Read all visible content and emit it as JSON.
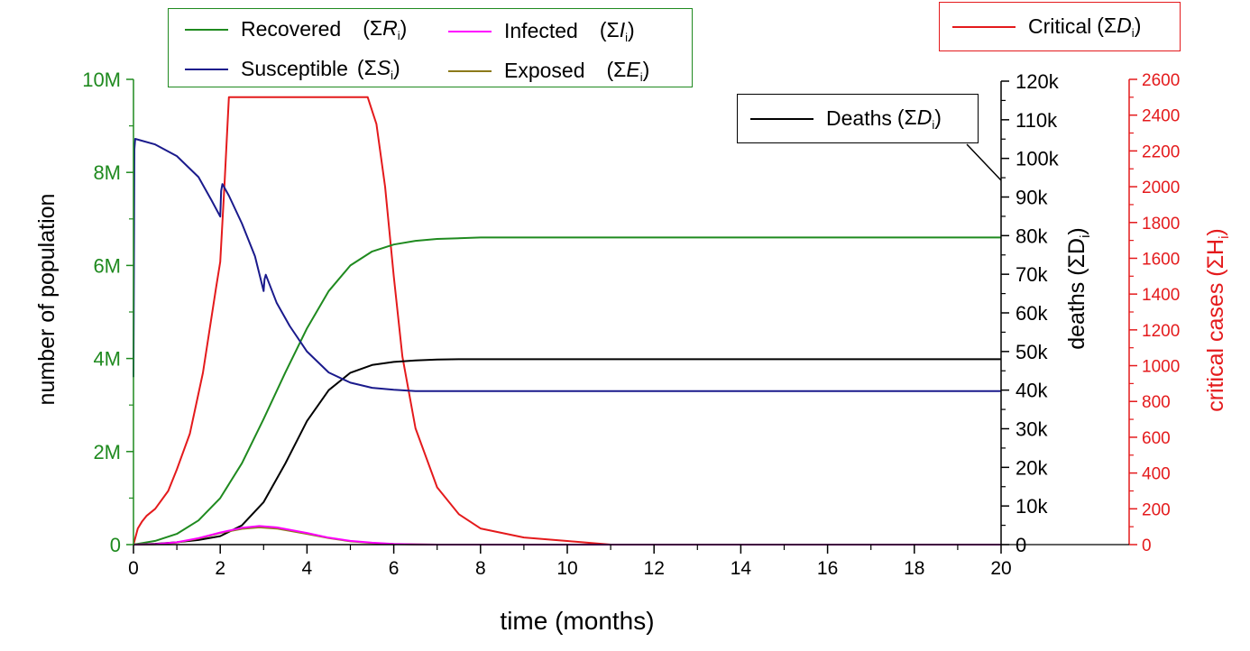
{
  "chart_data": {
    "type": "line",
    "xlabel": "time (months)",
    "x_ticks": [
      "0",
      "2",
      "4",
      "6",
      "8",
      "10",
      "12",
      "14",
      "16",
      "18",
      "20"
    ],
    "xlim": [
      0,
      20
    ],
    "axes": {
      "left": {
        "label": "number of population",
        "color": "#1f8a1f",
        "ylim": [
          0,
          10000000
        ],
        "ticks": [
          "0",
          "2M",
          "4M",
          "6M",
          "8M",
          "10M"
        ],
        "tick_values": [
          0,
          2000000,
          4000000,
          6000000,
          8000000,
          10000000
        ]
      },
      "right_deaths": {
        "label": "deaths (ΣD",
        "label_sub": "i",
        "color": "#000000",
        "ylim": [
          0,
          120000
        ],
        "ticks": [
          "0",
          "10k",
          "20k",
          "30k",
          "40k",
          "50k",
          "60k",
          "70k",
          "80k",
          "90k",
          "100k",
          "110k",
          "120k"
        ],
        "tick_values": [
          0,
          10000,
          20000,
          30000,
          40000,
          50000,
          60000,
          70000,
          80000,
          90000,
          100000,
          110000,
          120000
        ]
      },
      "right_critical": {
        "label": "critical cases (ΣH",
        "label_sub": "i",
        "color": "#e41a1c",
        "ylim": [
          0,
          2600
        ],
        "ticks": [
          "0",
          "200",
          "400",
          "600",
          "800",
          "1000",
          "1200",
          "1400",
          "1600",
          "1800",
          "2000",
          "2200",
          "2400",
          "2600"
        ],
        "tick_values": [
          0,
          200,
          400,
          600,
          800,
          1000,
          1200,
          1400,
          1600,
          1800,
          2000,
          2200,
          2400,
          2600
        ]
      }
    },
    "series": [
      {
        "name": "Recovered",
        "symbol": "R",
        "sub": "i",
        "axis": "left",
        "color": "#1f8a1f",
        "x": [
          0,
          0.5,
          1,
          1.5,
          2,
          2.5,
          3,
          3.5,
          4,
          4.5,
          5,
          5.5,
          6,
          6.5,
          7,
          8,
          10,
          15,
          20
        ],
        "y": [
          0,
          80000,
          230000,
          520000,
          1000000,
          1750000,
          2700000,
          3700000,
          4650000,
          5450000,
          6000000,
          6300000,
          6450000,
          6530000,
          6570000,
          6600000,
          6600000,
          6600000,
          6600000
        ]
      },
      {
        "name": "Susceptible",
        "symbol": "S",
        "sub": "i",
        "axis": "left",
        "color": "#1a1a8c",
        "x": [
          0,
          0.02,
          0.04,
          0.5,
          1,
          1.5,
          1.8,
          2.0,
          2.02,
          2.05,
          2.2,
          2.5,
          2.8,
          3.0,
          3.02,
          3.05,
          3.3,
          3.6,
          4,
          4.5,
          5,
          5.5,
          6,
          6.5,
          7,
          8,
          10,
          20
        ],
        "y": [
          3600000,
          8500000,
          8720000,
          8600000,
          8350000,
          7900000,
          7400000,
          7050000,
          7600000,
          7750000,
          7500000,
          6900000,
          6200000,
          5450000,
          5700000,
          5800000,
          5200000,
          4700000,
          4150000,
          3700000,
          3480000,
          3370000,
          3330000,
          3300000,
          3300000,
          3300000,
          3300000,
          3300000
        ]
      },
      {
        "name": "Infected",
        "symbol": "I",
        "sub": "i",
        "axis": "left",
        "color": "#ff00ff",
        "x": [
          0,
          0.5,
          1,
          1.5,
          2,
          2.5,
          2.9,
          3.3,
          4,
          4.5,
          5,
          5.5,
          6,
          6.5,
          7,
          8,
          10,
          20
        ],
        "y": [
          0,
          10000,
          50000,
          140000,
          260000,
          360000,
          400000,
          370000,
          250000,
          150000,
          80000,
          40000,
          15000,
          5000,
          0,
          0,
          0,
          0
        ]
      },
      {
        "name": "Exposed",
        "symbol": "E",
        "sub": "i",
        "axis": "left",
        "color": "#8c7a1a",
        "x": [
          0,
          0.5,
          1,
          1.5,
          2,
          2.5,
          2.9,
          3.3,
          4,
          4.5,
          5,
          5.5,
          6,
          6.5,
          7,
          8,
          10,
          20
        ],
        "y": [
          0,
          8000,
          45000,
          130000,
          250000,
          340000,
          370000,
          345000,
          230000,
          140000,
          70000,
          35000,
          12000,
          4000,
          0,
          0,
          0,
          0
        ]
      },
      {
        "name": "Deaths",
        "symbol": "D",
        "sub": "i",
        "axis": "right_deaths",
        "color": "#000000",
        "x": [
          0,
          0.5,
          1,
          1.5,
          2,
          2.5,
          3,
          3.5,
          4,
          4.5,
          5,
          5.5,
          6,
          6.5,
          7,
          7.5,
          8,
          10,
          20
        ],
        "y": [
          0,
          200,
          600,
          1200,
          2200,
          5000,
          11000,
          21000,
          32000,
          40000,
          44500,
          46500,
          47300,
          47700,
          47900,
          48000,
          48000,
          48000,
          48000
        ]
      },
      {
        "name": "Critical",
        "symbol": "D",
        "sub": "i",
        "axis": "right_critical",
        "color": "#e41a1c",
        "x": [
          0,
          0.1,
          0.2,
          0.3,
          0.5,
          0.8,
          1.0,
          1.3,
          1.6,
          1.9,
          2.0,
          2.1,
          2.2,
          2.5,
          3,
          4,
          5,
          5.4,
          5.6,
          5.8,
          6.0,
          6.2,
          6.5,
          7.0,
          7.5,
          8.0,
          9.0,
          10,
          11,
          20
        ],
        "y": [
          0,
          90,
          130,
          160,
          200,
          300,
          420,
          620,
          960,
          1430,
          1580,
          2020,
          2500,
          2500,
          2500,
          2500,
          2500,
          2500,
          2350,
          2000,
          1500,
          1050,
          650,
          320,
          170,
          90,
          40,
          20,
          0,
          0
        ]
      }
    ],
    "legend_boxes": [
      {
        "where": "top-left",
        "entries": [
          "Recovered",
          "Infected",
          "Susceptible",
          "Exposed"
        ]
      },
      {
        "where": "top-right",
        "entries": [
          "Critical"
        ]
      },
      {
        "where": "right",
        "entries": [
          "Deaths"
        ]
      }
    ]
  }
}
